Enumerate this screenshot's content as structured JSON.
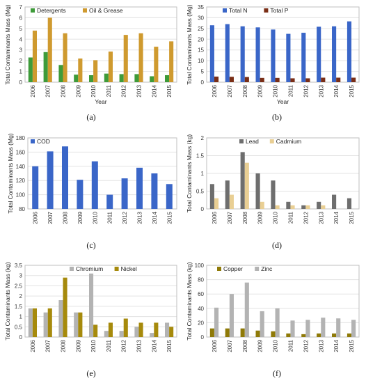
{
  "chart_data": [
    {
      "panel_label": "(a)",
      "type": "bar",
      "categories": [
        "2006",
        "2007",
        "2008",
        "2009",
        "2010",
        "2011",
        "2012",
        "2013",
        "2014",
        "2015"
      ],
      "series": [
        {
          "name": "Detergents",
          "color": "#3e9b3a",
          "values": [
            2.3,
            2.8,
            1.6,
            0.7,
            0.65,
            0.8,
            0.75,
            0.75,
            0.55,
            0.65
          ]
        },
        {
          "name": "Oil & Grease",
          "color": "#cf9a2f",
          "values": [
            4.8,
            6.0,
            4.55,
            2.2,
            2.05,
            2.85,
            4.4,
            4.55,
            3.3,
            3.8
          ]
        }
      ],
      "xlabel": "Year",
      "ylabel": "Total Contaminants Mass (Mg)",
      "ylim": [
        0,
        7
      ],
      "yticks": [
        0,
        1,
        2,
        3,
        4,
        5,
        6,
        7
      ],
      "grid": true,
      "legend_position": "top-left"
    },
    {
      "panel_label": "(b)",
      "type": "bar",
      "categories": [
        "2006",
        "2007",
        "2008",
        "2009",
        "2010",
        "2011",
        "2012",
        "2013",
        "2014",
        "2015"
      ],
      "series": [
        {
          "name": "Total N",
          "color": "#3a66c8",
          "values": [
            26.5,
            27,
            26,
            25.5,
            24.5,
            22.5,
            23,
            25.8,
            26,
            28.3
          ]
        },
        {
          "name": "Total P",
          "color": "#7a2e16",
          "values": [
            2.6,
            2.5,
            2.4,
            2.0,
            2.0,
            1.8,
            1.8,
            2.1,
            2.1,
            2.1
          ]
        }
      ],
      "xlabel": "Year",
      "ylabel": "Total Contaminants Mass (Mg)",
      "ylim": [
        0,
        35
      ],
      "yticks": [
        0,
        5,
        10,
        15,
        20,
        25,
        30,
        35
      ],
      "grid": true,
      "legend_position": "top-left"
    },
    {
      "panel_label": "(c)",
      "type": "bar",
      "categories": [
        "2006",
        "2007",
        "2008",
        "2009",
        "2010",
        "2011",
        "2012",
        "2013",
        "2014",
        "2015"
      ],
      "series": [
        {
          "name": "COD",
          "color": "#3a66c8",
          "values": [
            140,
            161,
            168,
            121,
            147,
            100,
            123,
            138,
            130,
            115
          ]
        }
      ],
      "xlabel": "",
      "ylabel": "Total Contaminants Mass (Mg)",
      "ylim": [
        80,
        180
      ],
      "yticks": [
        80,
        100,
        120,
        140,
        160,
        180
      ],
      "grid": true,
      "legend_position": "top-left"
    },
    {
      "panel_label": "(d)",
      "type": "bar",
      "categories": [
        "2006",
        "2007",
        "2008",
        "2009",
        "2010",
        "2011",
        "2012",
        "2013",
        "2014",
        "2015"
      ],
      "series": [
        {
          "name": "Lead",
          "color": "#6e6e6e",
          "values": [
            0.7,
            0.8,
            1.6,
            1.0,
            0.8,
            0.2,
            0.1,
            0.2,
            0.4,
            0.3
          ]
        },
        {
          "name": "Cadmium",
          "color": "#e9cf94",
          "values": [
            0.3,
            0.4,
            1.3,
            0.2,
            0.1,
            0.1,
            0.1,
            0.1,
            0,
            0
          ]
        }
      ],
      "xlabel": "",
      "ylabel": "Total Contaminants Mass (kg)",
      "ylim": [
        0,
        2
      ],
      "yticks": [
        0,
        0.5,
        1,
        1.5,
        2
      ],
      "grid": true,
      "legend_position": "top-center"
    },
    {
      "panel_label": "(e)",
      "type": "bar",
      "categories": [
        "2006",
        "2007",
        "2008",
        "2009",
        "2010",
        "2011",
        "2012",
        "2013",
        "2014",
        "2015"
      ],
      "series": [
        {
          "name": "Chromium",
          "color": "#b3b3b3",
          "values": [
            1.4,
            1.2,
            1.8,
            1.2,
            3.1,
            0.3,
            0.3,
            0.5,
            0.2,
            0.7
          ]
        },
        {
          "name": "Nickel",
          "color": "#a68a0c",
          "values": [
            1.4,
            1.4,
            2.9,
            1.2,
            0.6,
            0.7,
            0.9,
            0.7,
            0.7,
            0.5
          ]
        }
      ],
      "xlabel": "",
      "ylabel": "Total Contaminants Mass (kg)",
      "ylim": [
        0,
        3.5
      ],
      "yticks": [
        0,
        0.5,
        1,
        1.5,
        2,
        2.5,
        3,
        3.5
      ],
      "grid": true,
      "legend_position": "top-center"
    },
    {
      "panel_label": "(f)",
      "type": "bar",
      "categories": [
        "2006",
        "2007",
        "2008",
        "2009",
        "2010",
        "2011",
        "2012",
        "2013",
        "2014",
        "2015"
      ],
      "series": [
        {
          "name": "Copper",
          "color": "#8f7a08",
          "values": [
            12,
            12,
            12,
            9,
            8,
            5,
            4,
            5,
            5,
            5
          ]
        },
        {
          "name": "Zinc",
          "color": "#b3b3b3",
          "values": [
            41,
            60,
            76,
            36,
            40,
            23,
            24,
            27,
            26,
            24
          ]
        }
      ],
      "xlabel": "",
      "ylabel": "Total Contaminants Mass (kg)",
      "ylim": [
        0,
        100
      ],
      "yticks": [
        0,
        20,
        40,
        60,
        80,
        100
      ],
      "grid": true,
      "legend_position": "top-left"
    }
  ]
}
